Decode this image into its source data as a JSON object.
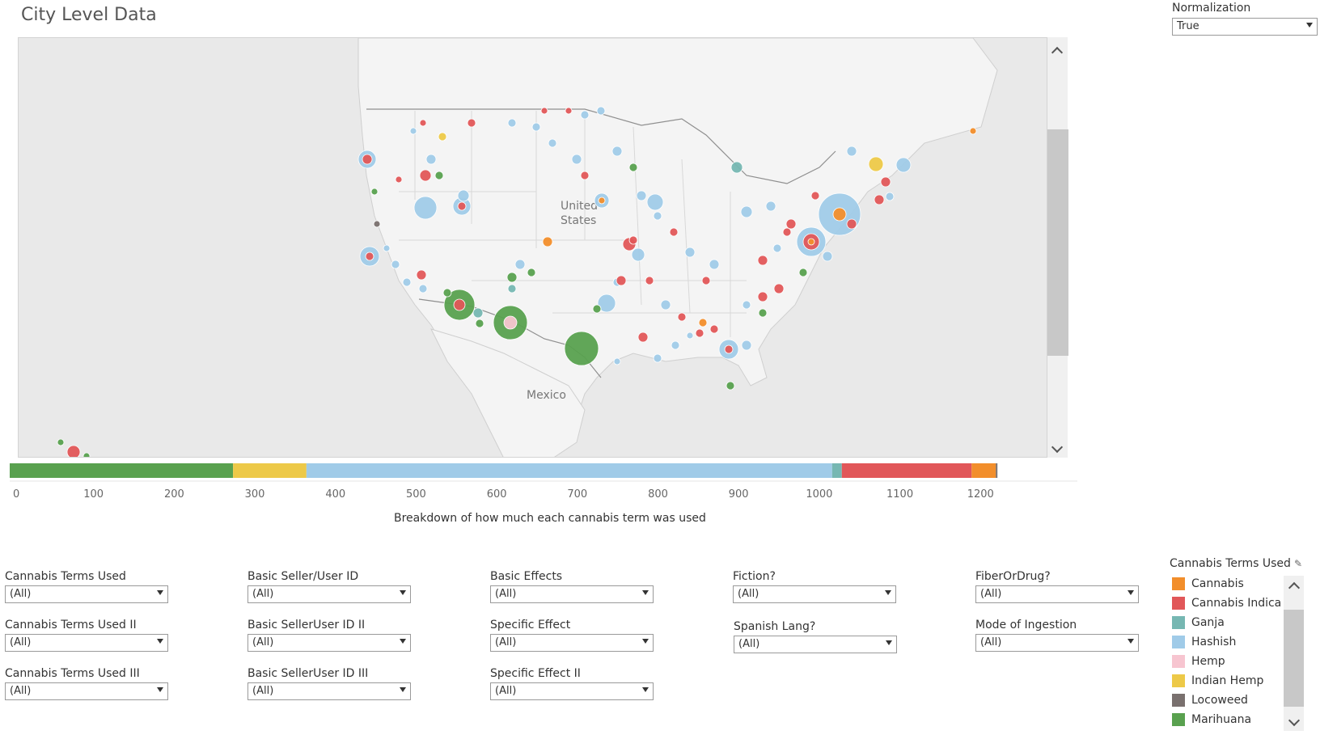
{
  "page_title": "City Level Data",
  "normalization": {
    "label": "Normalization",
    "value": "True"
  },
  "map": {
    "labels": {
      "us": [
        "United",
        "States"
      ],
      "mexico": "Mexico"
    },
    "colors": {
      "cannabis": "#f28e2b",
      "indica": "#e15759",
      "ganja": "#76b7b2",
      "hashish": "#a0cbe8",
      "hemp": "#f7c5d0",
      "indian_hemp": "#edc948",
      "locoweed": "#79706e",
      "marihuana": "#59a14f"
    },
    "icons": {
      "scroll_up": "chevron-up-icon",
      "scroll_down": "chevron-down-icon"
    }
  },
  "chart_data": {
    "type": "bar",
    "orientation": "horizontal-stacked",
    "title": "",
    "xlabel": "Breakdown of how much each cannabis term was used",
    "xlim": [
      0,
      1280
    ],
    "x_ticks": [
      "0",
      "100",
      "200",
      "300",
      "400",
      "500",
      "600",
      "700",
      "800",
      "900",
      "1000",
      "1100",
      "1200"
    ],
    "series": [
      {
        "name": "Marihuana",
        "value": 277,
        "color": "#59a14f"
      },
      {
        "name": "Indian Hemp",
        "value": 91,
        "color": "#edc948"
      },
      {
        "name": "Hashish",
        "value": 652,
        "color": "#a0cbe8"
      },
      {
        "name": "Ganja",
        "value": 12,
        "color": "#76b7b2"
      },
      {
        "name": "Cannabis Indica",
        "value": 161,
        "color": "#e15759"
      },
      {
        "name": "Cannabis",
        "value": 30,
        "color": "#f28e2b"
      },
      {
        "name": "Locoweed",
        "value": 2,
        "color": "#79706e"
      }
    ]
  },
  "filters": [
    {
      "label": "Cannabis Terms Used",
      "value": "(All)"
    },
    {
      "label": "Cannabis Terms Used II",
      "value": "(All)"
    },
    {
      "label": "Cannabis Terms Used III",
      "value": "(All)"
    },
    {
      "label": "Basic Seller/User ID",
      "value": "(All)"
    },
    {
      "label": "Basic SellerUser ID II",
      "value": "(All)"
    },
    {
      "label": "Basic SellerUser ID III",
      "value": "(All)"
    },
    {
      "label": "Basic Effects",
      "value": "(All)"
    },
    {
      "label": "Specific Effect",
      "value": "(All)"
    },
    {
      "label": "Specific Effect II",
      "value": "(All)"
    },
    {
      "label": "Fiction?",
      "value": "(All)"
    },
    {
      "label": "Spanish Lang?",
      "value": "(All)"
    },
    {
      "label": "FiberOrDrug?",
      "value": "(All)"
    },
    {
      "label": "Mode of Ingestion",
      "value": "(All)"
    }
  ],
  "legend": {
    "title": "Cannabis Terms Used",
    "items": [
      {
        "label": "Cannabis",
        "color": "#f28e2b"
      },
      {
        "label": "Cannabis Indica",
        "color": "#e15759"
      },
      {
        "label": "Ganja",
        "color": "#76b7b2"
      },
      {
        "label": "Hashish",
        "color": "#a0cbe8"
      },
      {
        "label": "Hemp",
        "color": "#f7c5d0"
      },
      {
        "label": "Indian Hemp",
        "color": "#edc948"
      },
      {
        "label": "Locoweed",
        "color": "#79706e"
      },
      {
        "label": "Marihuana",
        "color": "#59a14f"
      }
    ]
  }
}
